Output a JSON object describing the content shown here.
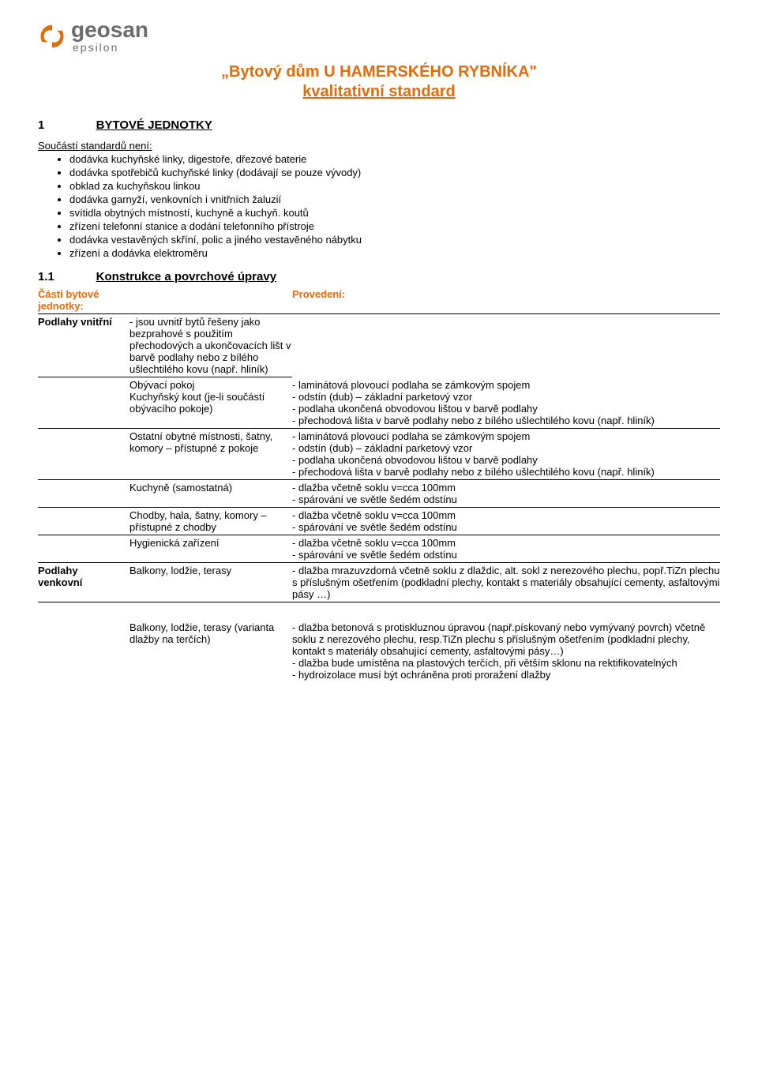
{
  "colors": {
    "accent": "#e36c0a",
    "text": "#000000",
    "logo_gray": "#6b6b6b",
    "logo_orange": "#e36c0a"
  },
  "fonts": {
    "body_family": "Verdana",
    "body_size_pt": 10,
    "title_size_pt": 15
  },
  "logo": {
    "main": "geosan",
    "sub": "epsilon"
  },
  "title": "„Bytový dům U HAMERSKÉHO RYBNÍKA\"",
  "subtitle": "kvalitativní standard",
  "section1": {
    "num": "1",
    "head": "BYTOVÉ JEDNOTKY",
    "intro": "Součástí standardů není:",
    "bullets": [
      "dodávka kuchyňské linky, digestoře, dřezové baterie",
      "dodávka spotřebičů kuchyňské linky (dodávají se pouze vývody)",
      "obklad za kuchyňskou linkou",
      "dodávka garnyží, venkovních i vnitřních žaluzií",
      "svítidla obytných místností, kuchyně a kuchyň. koutů",
      "zřízení telefonní stanice a dodání telefonního přístroje",
      "dodávka vestavěných skříní, polic a jiného vestavěného nábytku",
      "zřízení a dodávka elektroměru"
    ]
  },
  "section11": {
    "num": "1.1",
    "head": "Konstrukce a povrchové úpravy",
    "col_left_header": "Části bytové jednotky:",
    "col_right_header": "Provedení:"
  },
  "podlahy_vnitrni": {
    "label": "Podlahy vnitřní",
    "intro": "- jsou uvnitř bytů řešeny jako bezprahové s použitím přechodových a ukončovacích lišt v barvě podlahy nebo z bílého ušlechtilého kovu (např. hliník)",
    "rows": [
      {
        "left": "Obývací pokoj\nKuchyňský kout (je-li součástí obývacího pokoje)",
        "right": "- laminátová plovoucí podlaha se zámkovým spojem\n- odstín (dub) – základní parketový vzor\n- podlaha ukončená obvodovou lištou v barvě podlahy\n- přechodová lišta v barvě podlahy nebo z bílého ušlechtilého kovu (např. hliník)"
      },
      {
        "left": "Ostatní obytné místnosti, šatny, komory – přístupné z pokoje",
        "right": "- laminátová plovoucí podlaha se zámkovým spojem\n- odstín (dub) – základní parketový vzor\n- podlaha ukončená obvodovou lištou v barvě podlahy\n- přechodová lišta v barvě podlahy nebo z bílého ušlechtilého kovu (např. hliník)"
      },
      {
        "left": "Kuchyně (samostatná)",
        "right": "- dlažba včetně soklu v=cca 100mm\n- spárování ve světle šedém odstínu"
      },
      {
        "left": "Chodby, hala, šatny, komory – přístupné z chodby",
        "right": "- dlažba včetně soklu v=cca 100mm\n- spárování ve světle šedém odstínu"
      },
      {
        "left": "Hygienická zařízení",
        "right": "- dlažba včetně soklu v=cca 100mm\n- spárování ve světle šedém odstínu"
      }
    ]
  },
  "podlahy_venkovni": {
    "label": "Podlahy venkovní",
    "rows": [
      {
        "left": "Balkony, lodžie, terasy",
        "right": "- dlažba mrazuvzdorná včetně soklu z dlaždic, alt. sokl z nerezového plechu, popř.TiZn plechu s příslušným ošetřením (podkladní plechy, kontakt s materiály obsahující cementy, asfaltovými pásy …)"
      },
      {
        "left": "Balkony, lodžie, terasy (varianta dlažby na terčích)",
        "right": "- dlažba betonová s protiskluznou úpravou (např.pískovaný nebo vymývaný povrch) včetně soklu z nerezového plechu, resp.TiZn plechu s příslušným ošetřením (podkladní plechy, kontakt s materiály obsahující cementy, asfaltovými pásy…)\n- dlažba bude umístěna na plastových terčích, při větším sklonu na rektifikovatelných\n- hydroizolace musí být ochráněna proti proražení dlažby"
      }
    ]
  }
}
